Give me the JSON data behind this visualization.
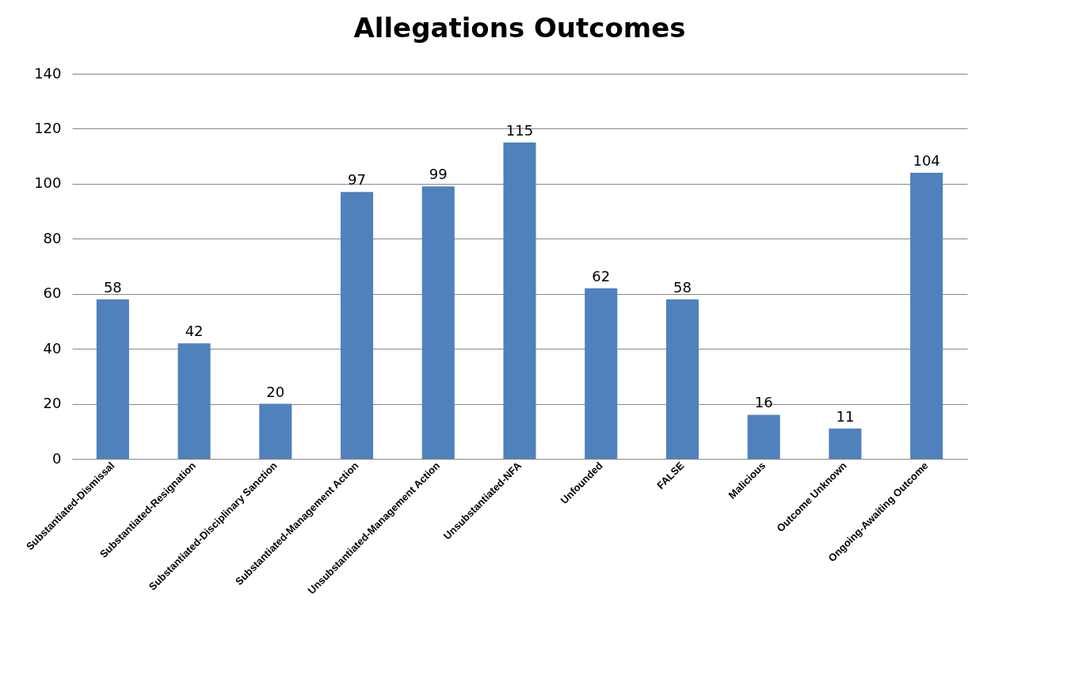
{
  "chart_data": {
    "type": "bar",
    "title": "Allegations Outcomes",
    "categories": [
      "Substantiated-Dismissal",
      "Substantiated-Resignation",
      "Substantiated-Disciplinary Sanction",
      "Substantiated-Management Action",
      "Unsubstantiated-Management Action",
      "Unsubstantiated-NFA",
      "Unfounded",
      "FALSE",
      "Malicious",
      "Outcome Unknown",
      "Ongoing-Awaiting Outcome"
    ],
    "values": [
      58,
      42,
      20,
      97,
      99,
      115,
      62,
      58,
      16,
      11,
      104
    ],
    "color": "#4f81bd",
    "ylim": [
      0,
      140
    ],
    "yticks": [
      0,
      20,
      40,
      60,
      80,
      100,
      120,
      140
    ],
    "grid": "y",
    "data_labels": true
  }
}
